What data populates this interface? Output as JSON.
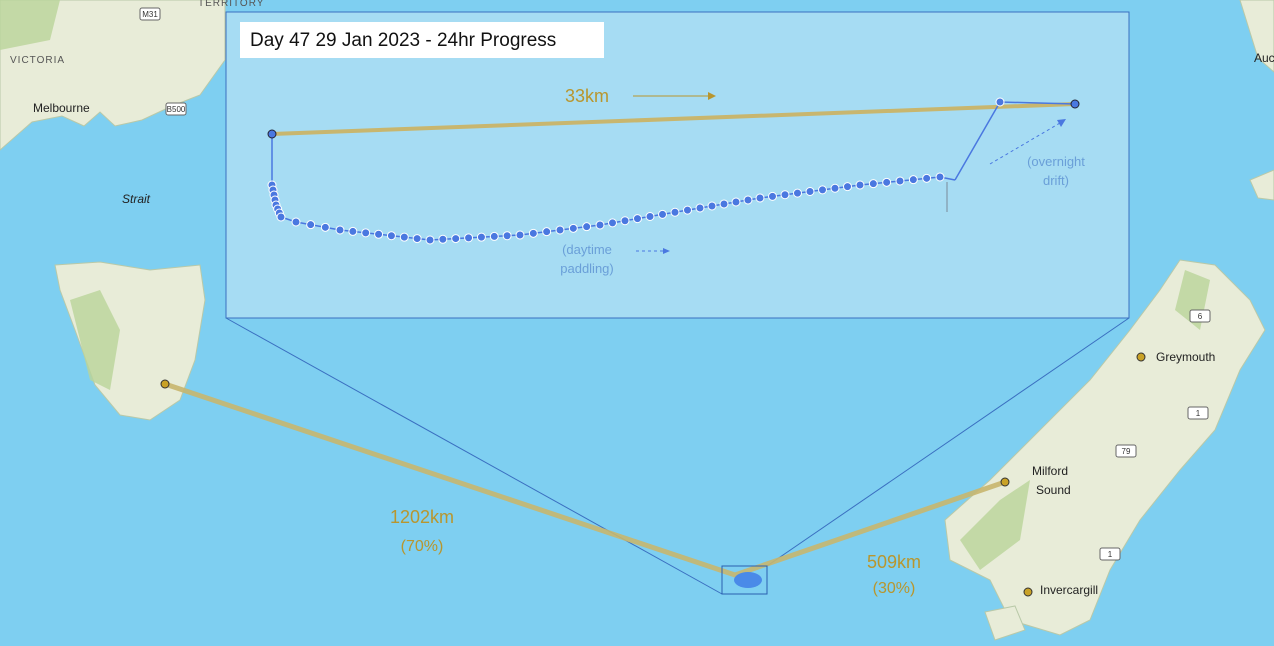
{
  "title": "Day 47 29 Jan 2023 - 24hr Progress",
  "inset": {
    "distance": "33km",
    "daytime_note": [
      "(daytime",
      "paddling)"
    ],
    "overnight_note": [
      "(overnight",
      "drift)"
    ]
  },
  "legs": [
    {
      "distance": "1202km",
      "share": "(70%)"
    },
    {
      "distance": "509km",
      "share": "(30%)"
    }
  ],
  "places": {
    "territory": "TERRITORY",
    "victoria": "VICTORIA",
    "melbourne": "Melbourne",
    "strait": "Strait",
    "auckland": "Auc",
    "greymouth": "Greymouth",
    "milford": [
      "Milford",
      "Sound"
    ],
    "invercargill": "Invercargill"
  },
  "roads": [
    "M31",
    "B500",
    "6",
    "1",
    "79",
    "1"
  ]
}
